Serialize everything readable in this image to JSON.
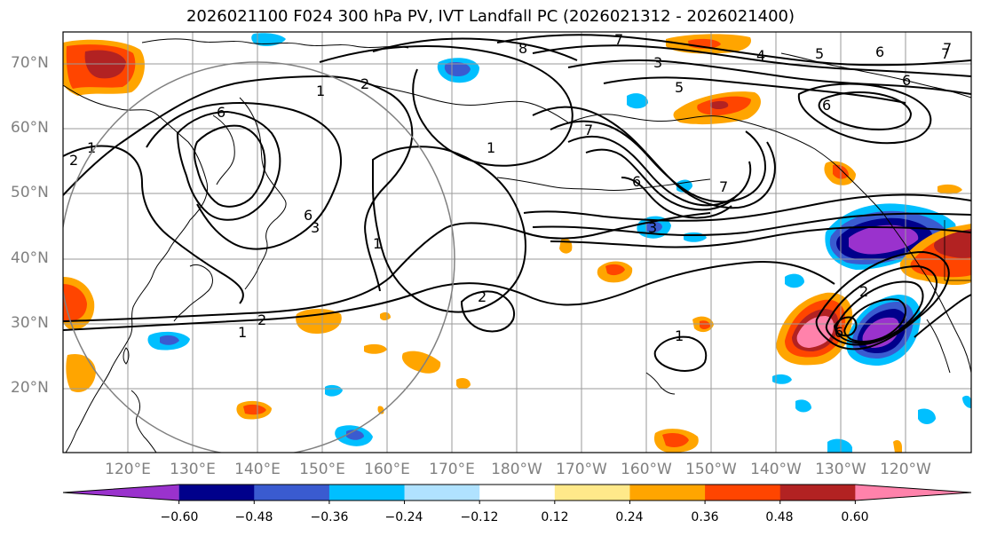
{
  "title": "2026021100 F024 300 hPa PV, IVT Landfall PC (2026021312 - 2026021400)",
  "lat_labels": [
    "70°N",
    "60°N",
    "50°N",
    "40°N",
    "30°N",
    "20°N"
  ],
  "lon_labels": [
    "120°E",
    "130°E",
    "140°E",
    "150°E",
    "160°E",
    "170°E",
    "180°W",
    "170°W",
    "160°W",
    "150°W",
    "140°W",
    "130°W",
    "120°W"
  ],
  "colorbar": {
    "colors": [
      "#9a32cd",
      "#00008b",
      "#3a5bd0",
      "#00bfff",
      "#b0e2ff",
      "#ffffff",
      "#ffe98a",
      "#ffa500",
      "#ff4500",
      "#b22222",
      "#ff82ab"
    ],
    "tick_labels": [
      "−0.60",
      "−0.48",
      "−0.36",
      "−0.24",
      "−0.12",
      "0.12",
      "0.24",
      "0.36",
      "0.48",
      "0.60"
    ]
  },
  "contour_labels": [
    "1",
    "2",
    "6",
    "1",
    "2",
    "7",
    "8",
    "7",
    "6",
    "1",
    "3",
    "4",
    "5",
    "6",
    "7",
    "5",
    "6",
    "7",
    "7",
    "6",
    "6",
    "3",
    "1",
    "2",
    "1",
    "2",
    "1",
    "2",
    "3",
    "6"
  ],
  "colors": {
    "gridline": "#9a9a9a",
    "coast": "#000000",
    "contour": "#000000",
    "circle": "#808080"
  }
}
